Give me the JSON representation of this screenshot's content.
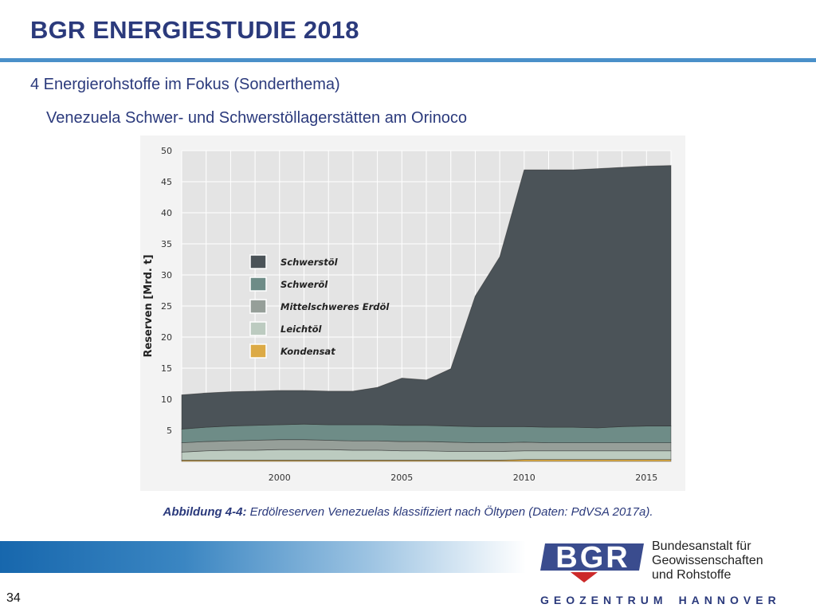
{
  "header": {
    "title": "BGR ENERGIESTUDIE 2018",
    "section": "4 Energierohstoffe im Fokus (Sonderthema)",
    "subsection": "Venezuela Schwer- und Schwerstöllagerstätten am Orinoco"
  },
  "caption": {
    "label": "Abbildung 4-4:",
    "text": "Erdölreserven Venezuelas klassifiziert nach Öltypen (Daten: PdVSA 2017a)."
  },
  "footer": {
    "page_number": "34",
    "logo_text": "BGR",
    "institution_lines": [
      "Bundesanstalt für",
      "Geowissenschaften",
      "und Rohstoffe"
    ],
    "geozentrum_a": "GEOZENTRUM",
    "geozentrum_b": "HANNOVER"
  },
  "colors": {
    "title": "#2b3a7c",
    "rule": "#4a90c9",
    "Schwerstöl": "#4b5358",
    "Schweröl": "#6e8c87",
    "Mittelschweres Erdöl": "#969f99",
    "Leichtöl": "#bccbc0",
    "Kondensat": "#dcaa45"
  },
  "chart_data": {
    "type": "area",
    "stacked": true,
    "ylabel": "Reserven [Mrd. t]",
    "xlabel": "",
    "xlim": [
      1996,
      2016
    ],
    "ylim": [
      0,
      50
    ],
    "yticks": [
      5,
      10,
      15,
      20,
      25,
      30,
      35,
      40,
      45,
      50
    ],
    "xticks": [
      2000,
      2005,
      2010,
      2015
    ],
    "grid": true,
    "legend_position": "center-left",
    "x": [
      1996,
      1997,
      1998,
      1999,
      2000,
      2001,
      2002,
      2003,
      2004,
      2005,
      2006,
      2007,
      2008,
      2009,
      2010,
      2011,
      2012,
      2013,
      2014,
      2015,
      2016
    ],
    "series": [
      {
        "name": "Kondensat",
        "values": [
          0.2,
          0.2,
          0.2,
          0.2,
          0.2,
          0.2,
          0.2,
          0.2,
          0.2,
          0.2,
          0.2,
          0.2,
          0.2,
          0.2,
          0.3,
          0.3,
          0.3,
          0.3,
          0.3,
          0.3,
          0.3
        ]
      },
      {
        "name": "Leichtöl",
        "values": [
          1.3,
          1.5,
          1.6,
          1.6,
          1.7,
          1.7,
          1.7,
          1.6,
          1.6,
          1.5,
          1.5,
          1.4,
          1.4,
          1.4,
          1.4,
          1.4,
          1.4,
          1.4,
          1.4,
          1.4,
          1.4
        ]
      },
      {
        "name": "Mittelschweres Erdöl",
        "values": [
          1.5,
          1.5,
          1.5,
          1.6,
          1.6,
          1.6,
          1.5,
          1.5,
          1.5,
          1.5,
          1.5,
          1.5,
          1.4,
          1.4,
          1.4,
          1.3,
          1.3,
          1.3,
          1.3,
          1.3,
          1.3
        ]
      },
      {
        "name": "Schweröl",
        "values": [
          2.2,
          2.3,
          2.4,
          2.4,
          2.4,
          2.5,
          2.5,
          2.6,
          2.6,
          2.6,
          2.6,
          2.6,
          2.6,
          2.6,
          2.5,
          2.5,
          2.5,
          2.4,
          2.6,
          2.7,
          2.7
        ]
      },
      {
        "name": "Schwerstöl",
        "values": [
          5.5,
          5.5,
          5.5,
          5.5,
          5.5,
          5.4,
          5.4,
          5.4,
          6.0,
          7.6,
          7.3,
          9.2,
          21.0,
          27.3,
          41.3,
          41.4,
          41.4,
          41.7,
          41.7,
          41.8,
          41.9
        ]
      }
    ],
    "legend_order": [
      "Schwerstöl",
      "Schweröl",
      "Mittelschweres Erdöl",
      "Leichtöl",
      "Kondensat"
    ]
  }
}
